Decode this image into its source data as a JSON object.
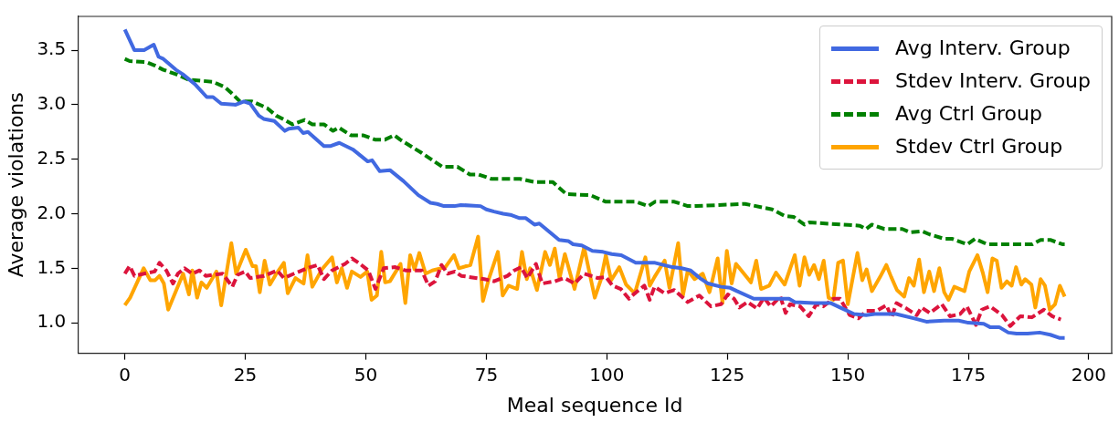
{
  "chart_data": {
    "type": "line",
    "xlabel": "Meal sequence Id",
    "ylabel": "Average violations",
    "xlim": [
      -9.75,
      204.75
    ],
    "xticks": [
      0,
      25,
      50,
      75,
      100,
      125,
      150,
      175,
      200
    ],
    "ylim": [
      0.72,
      3.81
    ],
    "yticks": [
      {
        "value": 1,
        "label": "1.0"
      },
      {
        "value": 1.5,
        "label": "1.5"
      },
      {
        "value": 2,
        "label": "2.0"
      },
      {
        "value": 2.5,
        "label": "2.5"
      },
      {
        "value": 3,
        "label": "3.0"
      },
      {
        "value": 3.5,
        "label": "3.5"
      }
    ],
    "grid": false,
    "legend": "top right",
    "marker": "none",
    "series": [
      {
        "name": "Avg Interv. Group",
        "color": "#4169e1",
        "line_style": "solid",
        "x": [
          0,
          2,
          4,
          6,
          7,
          8,
          10.6,
          12,
          14.5,
          17,
          18.3,
          20,
          23,
          24.7,
          26,
          27.8,
          28.8,
          31,
          33.2,
          34,
          36,
          37,
          38,
          41.3,
          42.6,
          44.5,
          47.3,
          50.4,
          51.3,
          52.9,
          55,
          57.8,
          60.9,
          63.4,
          64.8,
          66.2,
          68.4,
          69.7,
          73.8,
          75,
          76.6,
          78.5,
          80,
          81.9,
          83.2,
          85,
          86,
          90.1,
          92,
          93,
          94.8,
          97,
          99.2,
          101,
          103,
          106,
          110,
          113.6,
          115.5,
          117.4,
          119.3,
          121,
          123.7,
          125.6,
          127,
          130.5,
          137.8,
          139,
          143,
          146.5,
          148.4,
          151.3,
          153.8,
          155.6,
          160,
          163.8,
          166.3,
          170,
          173,
          175,
          178.2,
          179.5,
          181.4,
          183.3,
          185,
          187.3,
          189.8,
          192,
          194,
          195
        ],
        "values": [
          3.69,
          3.5,
          3.5,
          3.55,
          3.44,
          3.42,
          3.32,
          3.28,
          3.19,
          3.07,
          3.07,
          3.01,
          3.0,
          3.03,
          3.01,
          2.9,
          2.87,
          2.85,
          2.76,
          2.78,
          2.79,
          2.74,
          2.75,
          2.62,
          2.62,
          2.65,
          2.59,
          2.48,
          2.49,
          2.39,
          2.4,
          2.3,
          2.17,
          2.1,
          2.09,
          2.07,
          2.07,
          2.08,
          2.07,
          2.04,
          2.02,
          2.0,
          1.99,
          1.96,
          1.96,
          1.9,
          1.91,
          1.76,
          1.75,
          1.72,
          1.71,
          1.66,
          1.65,
          1.63,
          1.62,
          1.55,
          1.55,
          1.51,
          1.5,
          1.48,
          1.41,
          1.36,
          1.33,
          1.32,
          1.29,
          1.22,
          1.22,
          1.19,
          1.18,
          1.18,
          1.14,
          1.08,
          1.07,
          1.08,
          1.08,
          1.04,
          1.01,
          1.02,
          1.02,
          1.0,
          0.99,
          0.96,
          0.96,
          0.91,
          0.9,
          0.9,
          0.91,
          0.89,
          0.86,
          0.86
        ]
      },
      {
        "name": "Stdev Interv. Group",
        "color": "#dc143c",
        "line_style": "dashed",
        "x": [
          0,
          1,
          2,
          4,
          6.2,
          7.2,
          8.6,
          10,
          11,
          12.4,
          14,
          15.5,
          16.8,
          20.3,
          22.3,
          23.4,
          25,
          26,
          28.9,
          31.6,
          33,
          35.1,
          37.8,
          40,
          41.3,
          43,
          45.7,
          47.1,
          48.5,
          50.5,
          52,
          53.7,
          56.1,
          58.2,
          61.6,
          63,
          64.4,
          65.7,
          67,
          68.5,
          69.8,
          74.6,
          76.6,
          79.4,
          80.8,
          82.2,
          83.5,
          85.3,
          86.6,
          89.2,
          91.2,
          93.3,
          95.3,
          98.1,
          99.8,
          101.2,
          102.9,
          104.6,
          105.8,
          107.8,
          108.9,
          109.9,
          112,
          114,
          116.8,
          119.2,
          121.6,
          123.7,
          125.1,
          126.4,
          127.5,
          129.2,
          131.2,
          132.6,
          134,
          136,
          137.1,
          138,
          140.1,
          141.9,
          143.5,
          144.9,
          147,
          148.4,
          150.4,
          152.2,
          153.9,
          156,
          158,
          159.1,
          160.1,
          162.2,
          164.3,
          165.3,
          167,
          169.5,
          171.2,
          173.3,
          174.7,
          176.6,
          177.8,
          179.5,
          182,
          183.7,
          185.8,
          188.2,
          190.7,
          192.4,
          194.2
        ],
        "values": [
          1.45,
          1.52,
          1.43,
          1.45,
          1.47,
          1.55,
          1.48,
          1.36,
          1.45,
          1.5,
          1.45,
          1.48,
          1.43,
          1.45,
          1.33,
          1.44,
          1.47,
          1.41,
          1.43,
          1.48,
          1.41,
          1.45,
          1.5,
          1.53,
          1.4,
          1.48,
          1.54,
          1.59,
          1.55,
          1.48,
          1.31,
          1.5,
          1.51,
          1.48,
          1.48,
          1.34,
          1.38,
          1.53,
          1.45,
          1.47,
          1.43,
          1.4,
          1.38,
          1.43,
          1.48,
          1.51,
          1.41,
          1.54,
          1.36,
          1.38,
          1.41,
          1.36,
          1.45,
          1.41,
          1.42,
          1.34,
          1.31,
          1.22,
          1.27,
          1.34,
          1.21,
          1.33,
          1.27,
          1.3,
          1.19,
          1.25,
          1.15,
          1.17,
          1.26,
          1.22,
          1.14,
          1.19,
          1.13,
          1.23,
          1.15,
          1.24,
          1.09,
          1.17,
          1.15,
          1.06,
          1.17,
          1.15,
          1.22,
          1.22,
          1.07,
          1.04,
          1.11,
          1.11,
          1.16,
          1.05,
          1.18,
          1.13,
          1.07,
          1.14,
          1.09,
          1.17,
          1.06,
          1.08,
          1.15,
          0.98,
          1.12,
          1.15,
          1.07,
          0.97,
          1.06,
          1.05,
          1.12,
          1.06,
          1.03
        ]
      },
      {
        "name": "Avg Ctrl Group",
        "color": "#008000",
        "line_style": "dashed",
        "x": [
          0,
          1,
          4.5,
          6.2,
          8,
          10.6,
          13.2,
          18.3,
          20.8,
          22.3,
          23.9,
          26.4,
          29.5,
          31.4,
          33.2,
          34.8,
          37.3,
          38.9,
          41.3,
          43.2,
          44.4,
          46.9,
          49.4,
          51.9,
          54,
          55.9,
          57.1,
          61.5,
          65.9,
          69,
          71.6,
          73.4,
          76,
          82,
          85,
          88.8,
          91.6,
          96.6,
          99.8,
          106,
          108.6,
          110,
          114,
          116.8,
          118,
          128.7,
          134.3,
          136.9,
          138.8,
          141,
          142,
          152.5,
          153.8,
          155,
          157.6,
          161.3,
          162.9,
          165.4,
          167,
          170,
          171.6,
          174.8,
          176.4,
          178.9,
          188.3,
          190,
          192,
          194.5,
          195
        ],
        "values": [
          3.42,
          3.4,
          3.39,
          3.36,
          3.32,
          3.28,
          3.23,
          3.21,
          3.16,
          3.1,
          3.03,
          3.03,
          2.97,
          2.9,
          2.86,
          2.82,
          2.86,
          2.82,
          2.82,
          2.76,
          2.79,
          2.72,
          2.72,
          2.68,
          2.68,
          2.72,
          2.68,
          2.56,
          2.43,
          2.43,
          2.36,
          2.36,
          2.32,
          2.32,
          2.29,
          2.29,
          2.18,
          2.17,
          2.11,
          2.11,
          2.07,
          2.11,
          2.11,
          2.07,
          2.07,
          2.09,
          2.04,
          1.98,
          1.97,
          1.9,
          1.92,
          1.89,
          1.86,
          1.9,
          1.86,
          1.86,
          1.83,
          1.84,
          1.81,
          1.77,
          1.77,
          1.72,
          1.77,
          1.72,
          1.72,
          1.76,
          1.76,
          1.72,
          1.72
        ]
      },
      {
        "name": "Stdev Ctrl Group",
        "color": "#ffa500",
        "line_style": "solid",
        "x": [
          0,
          1.1,
          3.9,
          5.3,
          6.3,
          7.2,
          8.1,
          9,
          12.1,
          13.3,
          14,
          15,
          15.9,
          17,
          19,
          20,
          22.1,
          23.1,
          25.1,
          26.5,
          27.2,
          28,
          29,
          30.1,
          31.3,
          33,
          33.8,
          35.4,
          37.1,
          37.9,
          38.9,
          40.9,
          43,
          44,
          45,
          46.1,
          47.1,
          48.9,
          50.3,
          51.2,
          52.3,
          53.2,
          54,
          55,
          57.2,
          58.2,
          59.2,
          60.1,
          61.1,
          62.4,
          63.8,
          66.5,
          68.3,
          69.3,
          71.7,
          73.3,
          74.3,
          75.5,
          77.4,
          78.4,
          79.6,
          81.4,
          82.4,
          83.4,
          84.1,
          85.5,
          87.2,
          88.2,
          89.2,
          90.2,
          91.3,
          93.3,
          95.3,
          97.5,
          98.8,
          99.8,
          100.9,
          102.6,
          104,
          105.8,
          108,
          108.9,
          109.9,
          112,
          113,
          114.8,
          115.8,
          116.8,
          118.2,
          119.9,
          121.3,
          123,
          124,
          124.9,
          125.9,
          126.8,
          129.9,
          131,
          132,
          133.7,
          135.1,
          136.9,
          139,
          140,
          141,
          142,
          143,
          144,
          145,
          146,
          147,
          148,
          149,
          150,
          152,
          153,
          153.9,
          155,
          156.7,
          158,
          159,
          160.2,
          161.7,
          162.7,
          163.7,
          164.8,
          165.8,
          166.9,
          167.9,
          169,
          170,
          170.9,
          172.1,
          174.2,
          175.2,
          176.9,
          178,
          179,
          180,
          180.9,
          181.9,
          183,
          184,
          184.9,
          186,
          186.8,
          188.1,
          188.9,
          190,
          190.9,
          191.9,
          193,
          194,
          195
        ],
        "values": [
          1.16,
          1.23,
          1.5,
          1.39,
          1.39,
          1.43,
          1.36,
          1.12,
          1.45,
          1.26,
          1.48,
          1.23,
          1.37,
          1.32,
          1.47,
          1.16,
          1.73,
          1.45,
          1.67,
          1.52,
          1.52,
          1.28,
          1.57,
          1.35,
          1.44,
          1.55,
          1.27,
          1.41,
          1.36,
          1.62,
          1.33,
          1.49,
          1.6,
          1.37,
          1.5,
          1.32,
          1.47,
          1.42,
          1.47,
          1.21,
          1.25,
          1.65,
          1.37,
          1.38,
          1.54,
          1.18,
          1.62,
          1.49,
          1.64,
          1.45,
          1.48,
          1.51,
          1.62,
          1.5,
          1.53,
          1.79,
          1.2,
          1.4,
          1.65,
          1.25,
          1.34,
          1.31,
          1.65,
          1.4,
          1.5,
          1.3,
          1.65,
          1.53,
          1.68,
          1.41,
          1.63,
          1.31,
          1.69,
          1.23,
          1.4,
          1.62,
          1.39,
          1.51,
          1.35,
          1.27,
          1.6,
          1.34,
          1.42,
          1.57,
          1.32,
          1.73,
          1.25,
          1.48,
          1.4,
          1.45,
          1.28,
          1.59,
          1.18,
          1.66,
          1.36,
          1.54,
          1.37,
          1.57,
          1.31,
          1.34,
          1.46,
          1.35,
          1.62,
          1.34,
          1.6,
          1.44,
          1.53,
          1.4,
          1.57,
          1.23,
          1.21,
          1.55,
          1.57,
          1.17,
          1.64,
          1.39,
          1.49,
          1.29,
          1.42,
          1.53,
          1.42,
          1.3,
          1.24,
          1.41,
          1.34,
          1.58,
          1.28,
          1.47,
          1.29,
          1.5,
          1.28,
          1.21,
          1.33,
          1.29,
          1.47,
          1.62,
          1.46,
          1.28,
          1.59,
          1.57,
          1.32,
          1.38,
          1.34,
          1.51,
          1.35,
          1.4,
          1.35,
          1.14,
          1.4,
          1.34,
          1.12,
          1.17,
          1.34,
          1.24
        ]
      }
    ]
  }
}
